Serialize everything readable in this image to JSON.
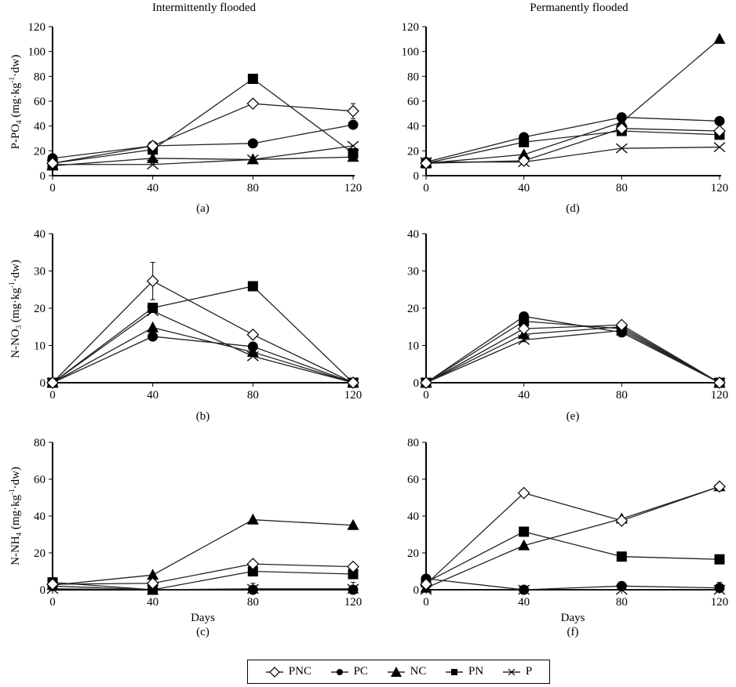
{
  "figure": {
    "column_titles": [
      "Intermittently flooded",
      "Permanently flooded"
    ],
    "legend": [
      {
        "key": "PNC",
        "label": "PNC",
        "marker": "open-diamond"
      },
      {
        "key": "PC",
        "label": "PC",
        "marker": "filled-circle"
      },
      {
        "key": "NC",
        "label": "NC",
        "marker": "filled-triangle"
      },
      {
        "key": "PN",
        "label": "PN",
        "marker": "filled-square"
      },
      {
        "key": "P",
        "label": "P",
        "marker": "x-cross"
      }
    ]
  },
  "chart_data": [
    {
      "type": "line",
      "panel": "(a)",
      "column": "Intermittently flooded",
      "ylabel": "P-PO4 (mg·kg-1·dw)",
      "xlabel": "",
      "x": [
        0,
        40,
        80,
        120
      ],
      "xticks": [
        "0",
        "40",
        "80",
        "120"
      ],
      "ylim": [
        0,
        120
      ],
      "yticks": [
        0,
        20,
        40,
        60,
        80,
        100,
        120
      ],
      "series": [
        {
          "name": "PNC",
          "values": [
            10,
            24,
            58,
            52
          ],
          "errors": [
            0,
            0,
            1,
            6
          ]
        },
        {
          "name": "PC",
          "values": [
            14,
            24,
            26,
            41
          ]
        },
        {
          "name": "NC",
          "values": [
            8,
            14,
            13,
            15
          ]
        },
        {
          "name": "PN",
          "values": [
            10,
            21,
            78,
            18
          ]
        },
        {
          "name": "P",
          "values": [
            9,
            9,
            13,
            24
          ]
        }
      ]
    },
    {
      "type": "line",
      "panel": "(b)",
      "column": "Intermittently flooded",
      "ylabel": "N-NO3 (mg·kg-1·dw)",
      "xlabel": "",
      "x": [
        0,
        40,
        80,
        120
      ],
      "xticks": [
        "0",
        "40",
        "80",
        "120"
      ],
      "ylim": [
        0,
        40
      ],
      "yticks": [
        0,
        10,
        20,
        30,
        40
      ],
      "series": [
        {
          "name": "PNC",
          "values": [
            0,
            27.3,
            12.9,
            0
          ],
          "errors": [
            0,
            5,
            0,
            0
          ]
        },
        {
          "name": "PC",
          "values": [
            0,
            12.4,
            9.7,
            0
          ]
        },
        {
          "name": "NC",
          "values": [
            0,
            14.8,
            8.2,
            0
          ]
        },
        {
          "name": "PN",
          "values": [
            0,
            20.1,
            25.9,
            0
          ]
        },
        {
          "name": "P",
          "values": [
            0,
            19.2,
            7.1,
            0
          ]
        }
      ]
    },
    {
      "type": "line",
      "panel": "(c)",
      "column": "Intermittently flooded",
      "ylabel": "N-NH4 (mg·kg-1·dw)",
      "xlabel": "Days",
      "x": [
        0,
        40,
        80,
        120
      ],
      "xticks": [
        "0",
        "40",
        "80",
        "120"
      ],
      "ylim": [
        0,
        80
      ],
      "yticks": [
        0,
        20,
        40,
        60,
        80
      ],
      "series": [
        {
          "name": "PNC",
          "values": [
            3,
            3.5,
            14,
            12.5
          ]
        },
        {
          "name": "PC",
          "values": [
            2,
            0,
            0,
            0
          ]
        },
        {
          "name": "NC",
          "values": [
            2.5,
            8,
            38,
            35
          ]
        },
        {
          "name": "PN",
          "values": [
            4,
            0,
            10,
            8.5
          ]
        },
        {
          "name": "P",
          "values": [
            0.5,
            0,
            0.5,
            0.5
          ],
          "errors": [
            0,
            0,
            3,
            3.5
          ]
        }
      ]
    },
    {
      "type": "line",
      "panel": "(d)",
      "column": "Permanently flooded",
      "ylabel": "",
      "xlabel": "",
      "x": [
        0,
        40,
        80,
        120
      ],
      "xticks": [
        "0",
        "40",
        "80",
        "120"
      ],
      "ylim": [
        0,
        120
      ],
      "yticks": [
        0,
        20,
        40,
        60,
        80,
        100,
        120
      ],
      "series": [
        {
          "name": "PNC",
          "values": [
            10,
            12,
            38,
            36
          ]
        },
        {
          "name": "PC",
          "values": [
            11,
            31,
            47,
            44
          ]
        },
        {
          "name": "NC",
          "values": [
            10,
            17,
            43,
            110
          ]
        },
        {
          "name": "PN",
          "values": [
            10,
            27,
            36,
            33
          ]
        },
        {
          "name": "P",
          "values": [
            11,
            11,
            22,
            23
          ]
        }
      ]
    },
    {
      "type": "line",
      "panel": "(e)",
      "column": "Permanently flooded",
      "ylabel": "",
      "xlabel": "",
      "x": [
        0,
        40,
        80,
        120
      ],
      "xticks": [
        "0",
        "40",
        "80",
        "120"
      ],
      "ylim": [
        0,
        40
      ],
      "yticks": [
        0,
        10,
        20,
        30,
        40
      ],
      "series": [
        {
          "name": "PNC",
          "values": [
            0,
            14.5,
            15.5,
            0
          ]
        },
        {
          "name": "PC",
          "values": [
            0,
            17.8,
            13.5,
            0
          ]
        },
        {
          "name": "NC",
          "values": [
            0,
            13,
            15,
            0
          ],
          "errors": [
            0,
            2,
            0,
            0
          ]
        },
        {
          "name": "PN",
          "values": [
            0,
            16.5,
            14.5,
            0
          ]
        },
        {
          "name": "P",
          "values": [
            0,
            11.5,
            14,
            0
          ]
        }
      ]
    },
    {
      "type": "line",
      "panel": "(f)",
      "column": "Permanently flooded",
      "ylabel": "",
      "xlabel": "Days",
      "x": [
        0,
        40,
        80,
        120
      ],
      "xticks": [
        "0",
        "40",
        "80",
        "120"
      ],
      "ylim": [
        0,
        80
      ],
      "yticks": [
        0,
        20,
        40,
        60,
        80
      ],
      "series": [
        {
          "name": "PNC",
          "values": [
            3,
            52.5,
            37.5,
            56
          ]
        },
        {
          "name": "PC",
          "values": [
            6,
            0,
            2,
            1
          ],
          "errors": [
            0,
            0,
            0,
            3
          ]
        },
        {
          "name": "NC",
          "values": [
            1,
            24,
            38.5,
            56
          ]
        },
        {
          "name": "PN",
          "values": [
            4,
            31.5,
            18,
            16.5
          ]
        },
        {
          "name": "P",
          "values": [
            0,
            0,
            0,
            0
          ]
        }
      ]
    }
  ]
}
